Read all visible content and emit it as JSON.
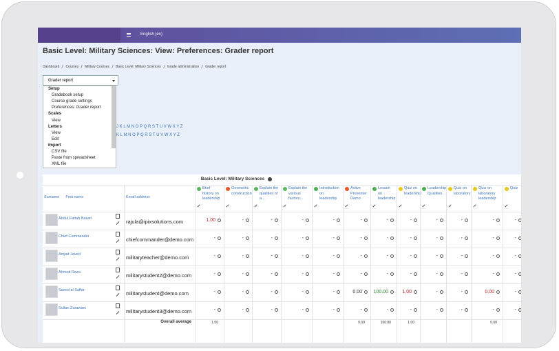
{
  "navbar": {
    "language": "English (en)"
  },
  "page": {
    "title": "Basic Level: Military Sciences: View: Preferences: Grader report",
    "breadcrumb": [
      "Dashboard",
      "Courses",
      "Military Courses",
      "Basic Level: Military Sciences",
      "Grade administration",
      "Grader report"
    ]
  },
  "select": {
    "label": "Grader report",
    "groups": [
      {
        "name": "Setup",
        "items": [
          "Gradebook setup",
          "Course grade settings",
          "Preferences: Grader report"
        ]
      },
      {
        "name": "Scales",
        "items": [
          "View"
        ]
      },
      {
        "name": "Letters",
        "items": [
          "View",
          "Edit"
        ]
      },
      {
        "name": "Import",
        "items": [
          "CSV file",
          "Paste from spreadsheet",
          "XML file"
        ]
      }
    ]
  },
  "initials": [
    "J K L M N O P Q R S T U V W X Y Z",
    "K L M N O P Q R S T U V W X Y Z"
  ],
  "table": {
    "course": "Basic Level: Military Sciences",
    "surname": "Surname",
    "first_name": "First name",
    "email": "Email address",
    "items": [
      {
        "name": "Brief history on leadership",
        "icon_color": "#5cb85c"
      },
      {
        "name": "Geometric construction",
        "icon_color": "#e8562a"
      },
      {
        "name": "Explain the qualities of a...",
        "icon_color": "#5cb85c"
      },
      {
        "name": "Explain the various factors...",
        "icon_color": "#5cb85c"
      },
      {
        "name": "Introduction on leadership",
        "icon_color": "#4caf50"
      },
      {
        "name": "Active Presenter Demo",
        "icon_color": "#e8562a"
      },
      {
        "name": "Lesson on leadership",
        "icon_color": "#4caf50"
      },
      {
        "name": "Quiz on leadership",
        "icon_color": "#e6c81e"
      },
      {
        "name": "Leadership Qualities",
        "icon_color": "#4caf50"
      },
      {
        "name": "Quiz on laboratory",
        "icon_color": "#e6c81e"
      },
      {
        "name": "Quiz on laboratory leadership",
        "icon_color": "#e6c81e"
      },
      {
        "name": "Quiz",
        "icon_color": "#e6c81e"
      }
    ],
    "rows": [
      {
        "name": "Abdul Fattah Basari",
        "email": "rajula@ipixsolutions.com",
        "grades": [
          "1.00",
          "-",
          "-",
          "-",
          "-",
          "-",
          "-",
          "-",
          "-",
          "-",
          "-",
          "-"
        ],
        "colors": [
          "#b22222",
          null,
          null,
          null,
          null,
          null,
          null,
          null,
          null,
          null,
          null,
          null
        ]
      },
      {
        "name": "Chief Commander",
        "email": "chiefcommander@demo.com",
        "grades": [
          "-",
          "-",
          "-",
          "-",
          "-",
          "-",
          "-",
          "-",
          "-",
          "-",
          "-",
          "-"
        ]
      },
      {
        "name": "Amjad Javed",
        "email": "militaryteacher@demo.com",
        "grades": [
          "-",
          "-",
          "-",
          "-",
          "-",
          "-",
          "-",
          "-",
          "-",
          "-",
          "-",
          "-"
        ]
      },
      {
        "name": "Ahmed Raza",
        "email": "militarystudent2@demo.com",
        "grades": [
          "-",
          "-",
          "-",
          "-",
          "-",
          "-",
          "-",
          "-",
          "-",
          "-",
          "-",
          "-"
        ]
      },
      {
        "name": "Saeed al Saffar",
        "email": "militarystudent@demo.com",
        "grades": [
          "-",
          "-",
          "-",
          "-",
          "-",
          "0.00",
          "100.00",
          "1.00",
          "-",
          "-",
          "0.00",
          "-"
        ],
        "colors": [
          null,
          null,
          null,
          null,
          null,
          null,
          "#2e7d32",
          "#b22222",
          null,
          null,
          "#b22222",
          null
        ]
      },
      {
        "name": "Sultan Zarawani",
        "email": "militarystudent3@demo.com",
        "grades": [
          "-",
          "-",
          "-",
          "-",
          "-",
          "-",
          "-",
          "-",
          "-",
          "-",
          "-",
          "-"
        ]
      }
    ],
    "average": {
      "label": "Overall average",
      "grades": [
        "1.00",
        null,
        null,
        null,
        null,
        "0.00",
        "100.00",
        "1.00",
        null,
        null,
        "0.00",
        null
      ]
    }
  }
}
